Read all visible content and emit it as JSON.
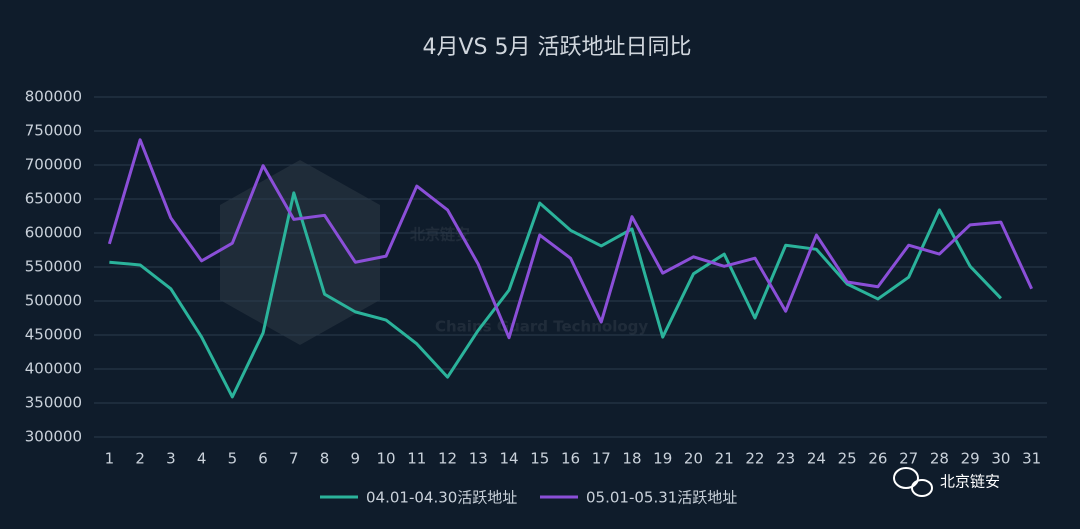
{
  "chart_data": {
    "type": "line",
    "title": "4月VS 5月 活跃地址日同比",
    "categories": [
      "1",
      "2",
      "3",
      "4",
      "5",
      "6",
      "7",
      "8",
      "9",
      "10",
      "11",
      "12",
      "13",
      "14",
      "15",
      "16",
      "17",
      "18",
      "19",
      "20",
      "21",
      "22",
      "23",
      "24",
      "25",
      "26",
      "27",
      "28",
      "29",
      "30",
      "31"
    ],
    "series": [
      {
        "name": "04.01-04.30活跃地址",
        "color": "#2bb39b",
        "values": [
          557000,
          553000,
          518000,
          447000,
          359000,
          453000,
          659000,
          510000,
          484000,
          472000,
          437000,
          388000,
          457000,
          516000,
          644000,
          604000,
          581000,
          606000,
          447000,
          540000,
          569000,
          475000,
          582000,
          576000,
          525000,
          503000,
          535000,
          634000,
          551000,
          504000,
          null
        ]
      },
      {
        "name": "05.01-05.31活跃地址",
        "color": "#8b4fd8",
        "values": [
          584000,
          737000,
          622000,
          559000,
          585000,
          699000,
          620000,
          626000,
          557000,
          566000,
          669000,
          634000,
          554000,
          446000,
          597000,
          563000,
          469000,
          624000,
          541000,
          565000,
          551000,
          563000,
          485000,
          597000,
          528000,
          521000,
          582000,
          569000,
          612000,
          616000,
          518000
        ]
      }
    ],
    "ylim": [
      300000,
      800000
    ],
    "yticks": [
      300000,
      350000,
      400000,
      450000,
      500000,
      550000,
      600000,
      650000,
      700000,
      750000,
      800000
    ],
    "grid": true,
    "legend": "bottom",
    "watermark": "北京链安",
    "watermark_sub": "Chains Guard Technology",
    "brand": "北京链安"
  }
}
